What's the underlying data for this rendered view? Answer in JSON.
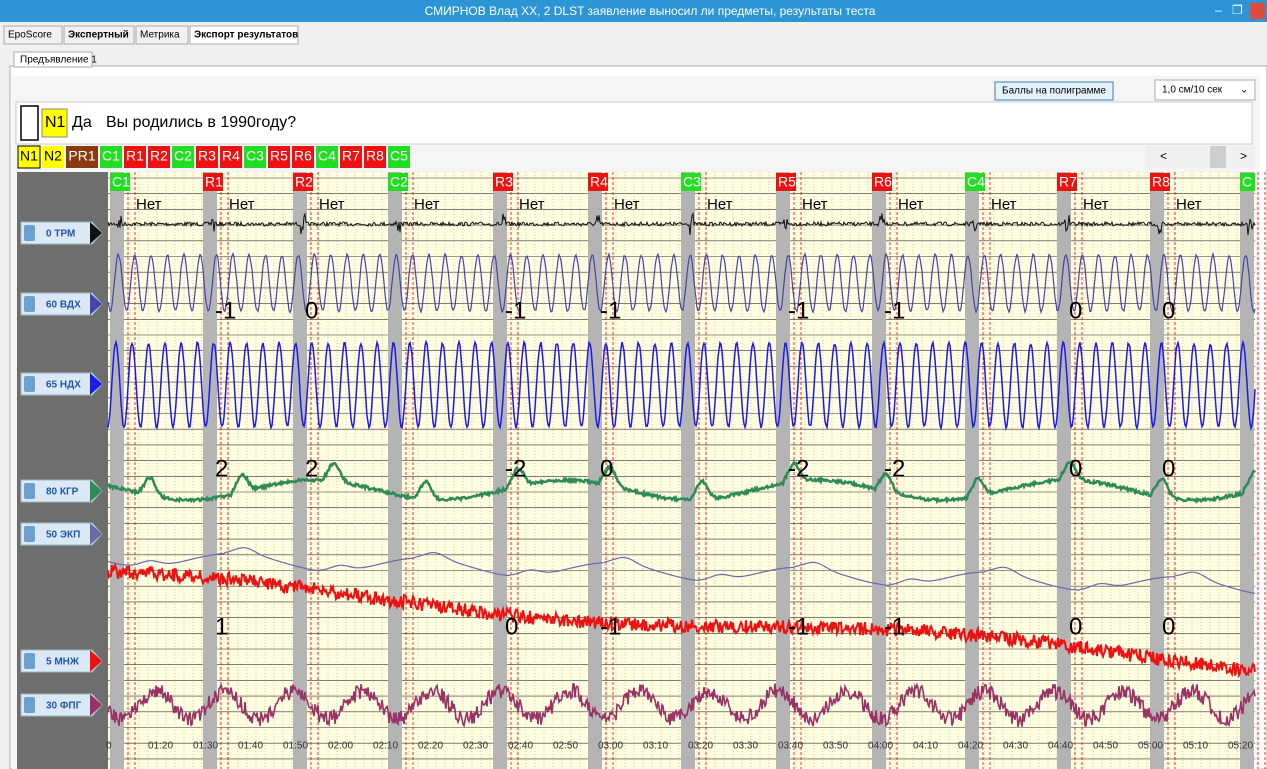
{
  "window": {
    "title": "СМИРНОВ Влад XX, 2 DLST  заявление выносил ли предметы, результаты теста"
  },
  "tabs": [
    "EpoScore",
    "Экспертный",
    "Метрика",
    "Экспорт результатов"
  ],
  "subtab": "Предъявление 1",
  "toolbar": {
    "button": "Баллы на полиграмме",
    "scale": "1,0 см/10 сек"
  },
  "question": {
    "code": "N1",
    "answer": "Да",
    "text": "Вы родились в 1990году?"
  },
  "chips": [
    {
      "label": "N1",
      "color": "#ffff00"
    },
    {
      "label": "N2",
      "color": "#ffff00"
    },
    {
      "label": "PR1",
      "color": "#8b3a0e"
    },
    {
      "label": "C1",
      "color": "#22dd22"
    },
    {
      "label": "R1",
      "color": "#ee1111"
    },
    {
      "label": "R2",
      "color": "#ee1111"
    },
    {
      "label": "C2",
      "color": "#22dd22"
    },
    {
      "label": "R3",
      "color": "#ee1111"
    },
    {
      "label": "R4",
      "color": "#ee1111"
    },
    {
      "label": "C3",
      "color": "#22dd22"
    },
    {
      "label": "R5",
      "color": "#ee1111"
    },
    {
      "label": "R6",
      "color": "#ee1111"
    },
    {
      "label": "C4",
      "color": "#22dd22"
    },
    {
      "label": "R7",
      "color": "#ee1111"
    },
    {
      "label": "R8",
      "color": "#ee1111"
    },
    {
      "label": "C5",
      "color": "#22dd22"
    }
  ],
  "scroll": {
    "left": "<",
    "right": ">"
  },
  "markers": [
    {
      "label": "C1",
      "color": "#22dd22"
    },
    {
      "label": "R1",
      "color": "#ee1111"
    },
    {
      "label": "R2",
      "color": "#ee1111"
    },
    {
      "label": "C2",
      "color": "#22dd22"
    },
    {
      "label": "R3",
      "color": "#ee1111"
    },
    {
      "label": "R4",
      "color": "#ee1111"
    },
    {
      "label": "C3",
      "color": "#22dd22"
    },
    {
      "label": "R5",
      "color": "#ee1111"
    },
    {
      "label": "R6",
      "color": "#ee1111"
    },
    {
      "label": "C4",
      "color": "#22dd22"
    },
    {
      "label": "R7",
      "color": "#ee1111"
    },
    {
      "label": "R8",
      "color": "#ee1111"
    },
    {
      "label": "C",
      "color": "#22dd22"
    }
  ],
  "answers": [
    "Нет",
    "Нет",
    "Нет",
    "Нет",
    "Нет",
    "Нет",
    "Нет",
    "Нет",
    "Нет",
    "Нет",
    "Нет",
    "Нет"
  ],
  "channels": [
    {
      "label": "0 ТРМ",
      "color": "#111111"
    },
    {
      "label": "60 ВДХ",
      "color": "#4444aa"
    },
    {
      "label": "65 НДХ",
      "color": "#1a1aee"
    },
    {
      "label": "80 КГР",
      "color": "#2e8b57"
    },
    {
      "label": "50 ЭКП",
      "color": "#6a6aaa"
    },
    {
      "label": "5 МНЖ",
      "color": "#ee1111"
    },
    {
      "label": "30 ФПГ",
      "color": "#993366"
    }
  ],
  "scores": {
    "vdh": [
      "-1",
      "0",
      "-1",
      "-1",
      "-1",
      "-1",
      "0",
      "0"
    ],
    "kgr": [
      "2",
      "2",
      "-2",
      "0",
      "-2",
      "-2",
      "0",
      "0"
    ],
    "mnzh": [
      "1",
      "0",
      "-1",
      "-1",
      "-1",
      "0",
      "0"
    ]
  },
  "time_labels": [
    "0",
    "01:20",
    "01:30",
    "01:40",
    "01:50",
    "02:00",
    "02:10",
    "02:20",
    "02:30",
    "02:40",
    "02:50",
    "03:00",
    "03:10",
    "03:20",
    "03:30",
    "03:40",
    "03:50",
    "04:00",
    "04:10",
    "04:20",
    "04:30",
    "04:40",
    "04:50",
    "05:00",
    "05:10",
    "05:20"
  ]
}
